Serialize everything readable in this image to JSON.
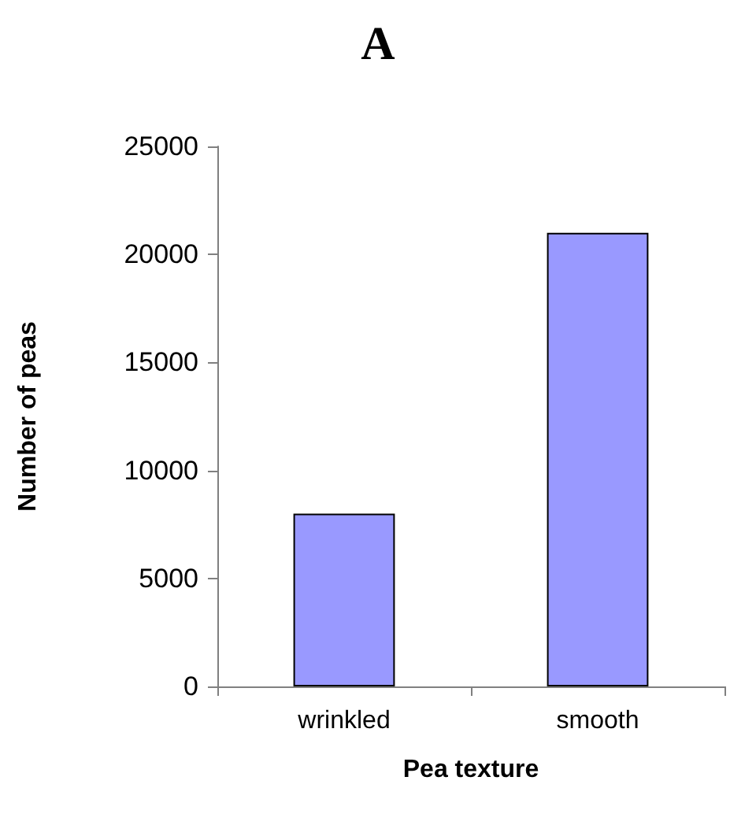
{
  "chart_data": {
    "type": "bar",
    "title": "A",
    "xlabel": "Pea texture",
    "ylabel": "Number of peas",
    "categories": [
      "wrinkled",
      "smooth"
    ],
    "values": [
      8000,
      21000
    ],
    "color": "#9999ff",
    "ylim": [
      0,
      25000
    ],
    "yticks": [
      0,
      5000,
      10000,
      15000,
      20000,
      25000
    ],
    "grid": false
  }
}
